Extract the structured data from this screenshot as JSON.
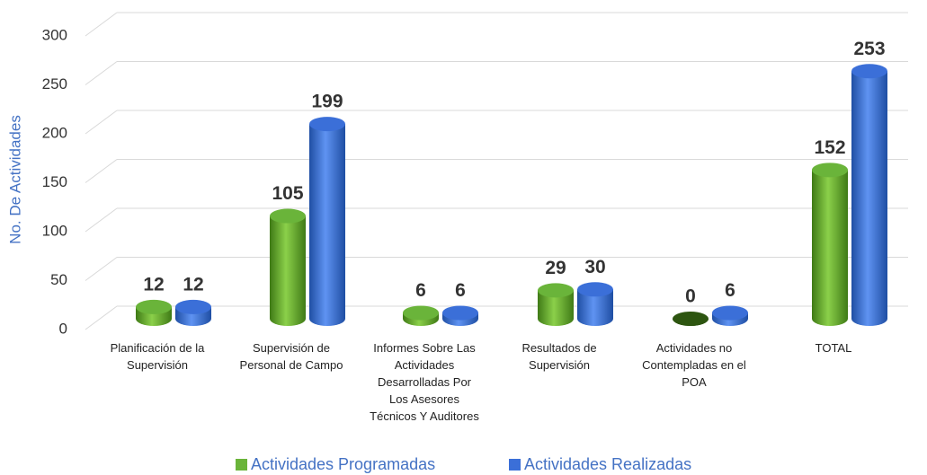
{
  "chart_data": {
    "type": "bar3d",
    "y_label": "No. De Actividades",
    "categories": [
      "Planificación de la Supervisión",
      "Supervisión de Personal de Campo",
      "Informes Sobre Las Actividades Desarrolladas Por Los Asesores Técnicos Y Auditores",
      "Resultados de Supervisión",
      "Actividades no Contempladas en el POA",
      "TOTAL"
    ],
    "series": [
      {
        "name": "Actividades Programadas",
        "color": "#6ab43a",
        "values": [
          12,
          105,
          6,
          29,
          0,
          152
        ]
      },
      {
        "name": "Actividades Realizadas",
        "color": "#3b6fd8",
        "values": [
          12,
          199,
          6,
          30,
          6,
          253
        ]
      }
    ],
    "ylim": [
      0,
      300
    ],
    "yticks": [
      0,
      50,
      100,
      150,
      200,
      250,
      300
    ],
    "grid": true,
    "legend": "bottom"
  }
}
